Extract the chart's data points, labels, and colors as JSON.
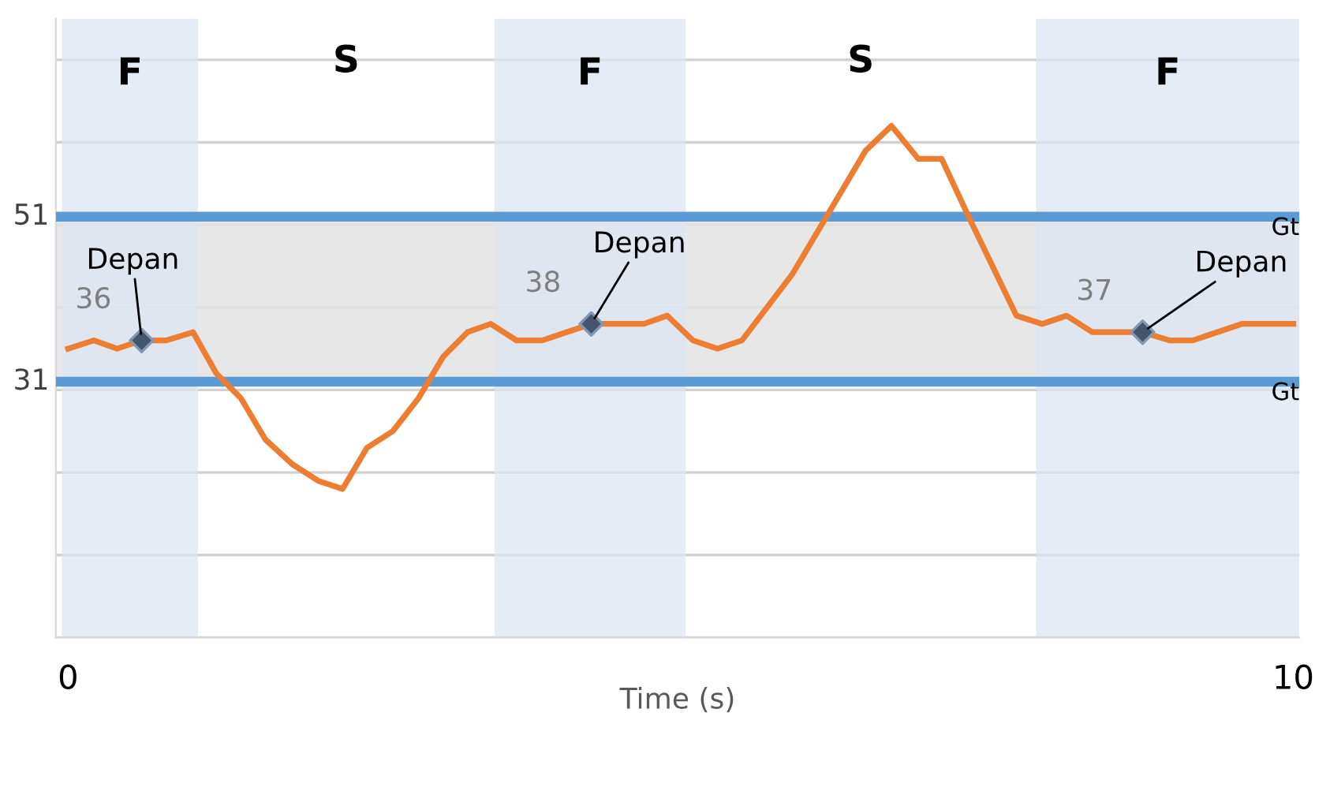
{
  "chart_data": {
    "type": "line",
    "xlabel": "Time (s)",
    "xlim": [
      -0.1,
      10.05
    ],
    "xticks": [
      0,
      10
    ],
    "ylim": [
      0,
      75
    ],
    "yticks": [
      {
        "value": 0,
        "label": null
      },
      {
        "value": 10,
        "label": null
      },
      {
        "value": 20,
        "label": null
      },
      {
        "value": 30,
        "label": null
      },
      {
        "value": 40,
        "label": null
      },
      {
        "value": 50,
        "label": null
      },
      {
        "value": 60,
        "label": null
      },
      {
        "value": 70,
        "label": null
      }
    ],
    "grid": "y",
    "series": [
      {
        "color": "#ed7d31",
        "marker": "none",
        "line_style": "solid",
        "x": [
          0,
          0.21,
          0.4,
          0.6,
          0.8,
          1.02,
          1.21,
          1.41,
          1.61,
          1.83,
          2.04,
          2.24,
          2.44,
          2.65,
          2.86,
          3.06,
          3.26,
          3.45,
          3.66,
          3.87,
          4.27,
          4.7,
          4.89,
          5.1,
          5.3,
          5.5,
          5.91,
          6.51,
          6.72,
          6.94,
          7.13,
          7.35,
          7.74,
          7.95,
          8.15,
          8.36,
          8.77,
          8.99,
          9.18,
          9.58,
          10
        ],
        "values": [
          35,
          36,
          35,
          36,
          36,
          37,
          32,
          29,
          24,
          21,
          19,
          18,
          23,
          25,
          29,
          34,
          37,
          38,
          36,
          36,
          38,
          38,
          39,
          36,
          35,
          36,
          44,
          59,
          62,
          58,
          58,
          51,
          39,
          38,
          39,
          37,
          37,
          36,
          36,
          38,
          38
        ]
      },
      {
        "type": "scatter",
        "color": "#44546a",
        "marker": "diamond",
        "x": [
          0.6,
          4.27,
          8.77
        ],
        "values": [
          36,
          38,
          37
        ],
        "data_labels": true
      }
    ],
    "ref_lines": [
      {
        "axis": "y",
        "value": 51,
        "label": "Gt",
        "color": "#5b9bd5"
      },
      {
        "axis": "y",
        "value": 31,
        "label": "Gt",
        "color": "#5b9bd5"
      }
    ],
    "bands": [
      {
        "axis": "y",
        "from": 31,
        "to": 51,
        "label": null,
        "color": "#e3e3e3"
      },
      {
        "axis": "x",
        "from": -0.05,
        "to": 1.06,
        "label": "F",
        "color": "#dce6f1"
      },
      {
        "axis": "x",
        "from": 3.48,
        "to": 5.04,
        "label": "F",
        "color": "#dce6f1"
      },
      {
        "axis": "x",
        "from": 7.9,
        "to": 10.05,
        "label": "F",
        "color": "#dce6f1"
      }
    ],
    "annotations": [
      "S",
      "S",
      {
        "text": "51",
        "x": -0.1,
        "y": 51
      },
      {
        "text": "31",
        "x": -0.1,
        "y": 31
      },
      {
        "text": "Depan",
        "x": 0.6,
        "y": 36
      },
      {
        "text": "Depan",
        "x": 4.27,
        "y": 38
      },
      {
        "text": "Depan",
        "x": 8.77,
        "y": 37
      }
    ]
  }
}
